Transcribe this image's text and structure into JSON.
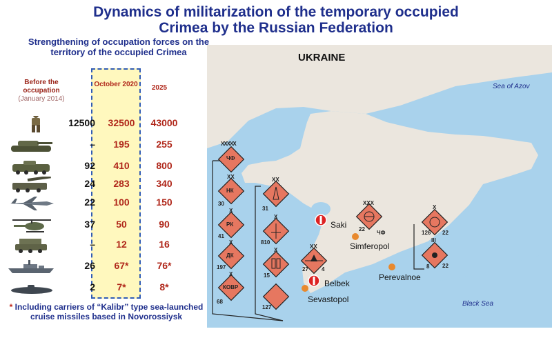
{
  "title": {
    "line1": "Dynamics of militarization of the temporary occupied",
    "line2": "Crimea by the Russian Federation"
  },
  "table": {
    "subtitle": "Strengthening of occupation forces on the territory of the occupied Crimea",
    "header_before": "Before the occupation",
    "header_before_sub": "(January 2014)",
    "header_oct": "October 2020",
    "header_2025": "2025",
    "rows": [
      {
        "icon": "soldier-icon",
        "before": "12500",
        "oct": "32500",
        "y2025": "43000"
      },
      {
        "icon": "tank-icon",
        "before": "–",
        "oct": "195",
        "y2025": "255"
      },
      {
        "icon": "armored-vehicle-icon",
        "before": "92",
        "oct": "410",
        "y2025": "800"
      },
      {
        "icon": "artillery-icon",
        "before": "24",
        "oct": "283",
        "y2025": "340"
      },
      {
        "icon": "fighter-jet-icon",
        "before": "22",
        "oct": "100",
        "y2025": "150"
      },
      {
        "icon": "helicopter-icon",
        "before": "37",
        "oct": "50",
        "y2025": "90"
      },
      {
        "icon": "missile-launcher-icon",
        "before": "–",
        "oct": "12",
        "y2025": "16"
      },
      {
        "icon": "warship-icon",
        "before": "26",
        "oct": "67*",
        "y2025": "76*"
      },
      {
        "icon": "submarine-icon",
        "before": "2",
        "oct": "7*",
        "y2025": "8*"
      }
    ],
    "footnote_star": "*",
    "footnote": "Including carriers of “Kalibr” type sea-launched cruise missiles based in Novorossiysk"
  },
  "map": {
    "country_label": "UKRAINE",
    "sea_azov": "Sea of Azov",
    "black_sea": "Black Sea",
    "cities": [
      "Saki",
      "Simferopol",
      "Perevalnoe",
      "Belbek",
      "Sevastopol"
    ],
    "unit_codes": [
      "ЧФ",
      "НК",
      "РК",
      "ДК",
      "КОВР",
      "ЧФ"
    ],
    "unit_numbers": [
      "30",
      "41",
      "197",
      "68",
      "31",
      "810",
      "15",
      "127",
      "27",
      "4",
      "22",
      "126",
      "22",
      "8",
      "22"
    ],
    "echelons": [
      "XXXXX",
      "XX",
      "X",
      "X",
      "X",
      "XX",
      "X",
      "X",
      "XX",
      "XXX",
      "X",
      "III"
    ],
    "colors": {
      "land": "#ebe6de",
      "sea": "#a9d2ec",
      "unit": "#e67760",
      "city": "#e8892e",
      "title": "#1f2f8c",
      "value": "#b0271a"
    }
  }
}
